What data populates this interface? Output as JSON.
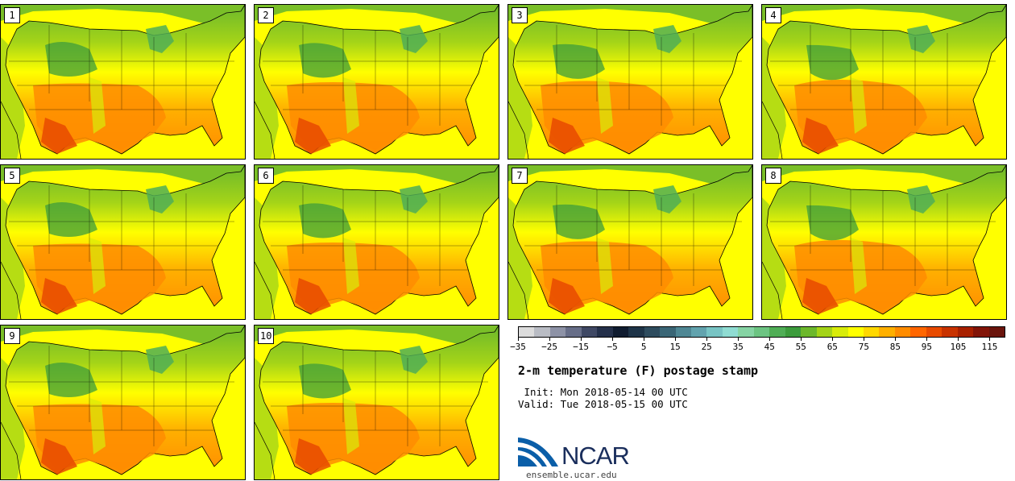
{
  "title": "2-m temperature (F) postage stamp",
  "init_label": " Init: Mon 2018-05-14 00 UTC",
  "valid_label": "Valid: Tue 2018-05-15 00 UTC",
  "site": "ensemble.ucar.edu",
  "logo_text": "NCAR",
  "panels": [
    "1",
    "2",
    "3",
    "4",
    "5",
    "6",
    "7",
    "8",
    "9",
    "10"
  ],
  "colorbar": {
    "tick_labels": [
      "−35",
      "−25",
      "−15",
      "−5",
      "5",
      "15",
      "25",
      "35",
      "45",
      "55",
      "65",
      "75",
      "85",
      "95",
      "105",
      "115"
    ],
    "colors": [
      "#dcdcdc",
      "#b9bcc4",
      "#8d92a6",
      "#676e88",
      "#3f4864",
      "#24304a",
      "#101c30",
      "#1e3448",
      "#2e4c5e",
      "#3a6676",
      "#4f8794",
      "#62a3ae",
      "#78c4c4",
      "#8fdcd2",
      "#86d4a4",
      "#6cc482",
      "#50ae56",
      "#3c9c3c",
      "#6cb82c",
      "#a4d418",
      "#d8ec0a",
      "#ffff00",
      "#ffd800",
      "#ffb000",
      "#ff8c00",
      "#ff6600",
      "#e84a00",
      "#c83200",
      "#a82000",
      "#821408",
      "#6a140c"
    ]
  }
}
